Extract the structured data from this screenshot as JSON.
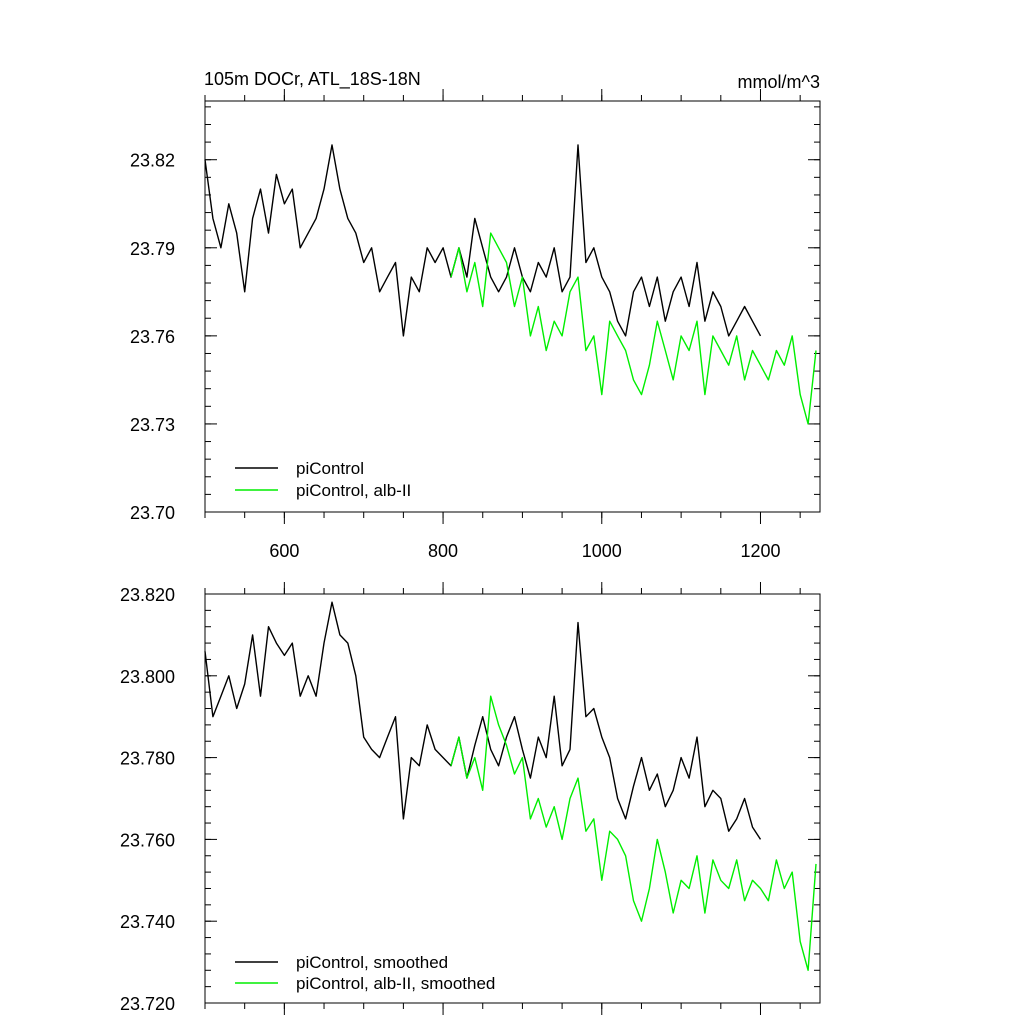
{
  "colors": {
    "control": "#000000",
    "alb": "#00ee00",
    "background": "#ffffff"
  },
  "chart_data": [
    {
      "type": "line",
      "title": "105m DOCr, ATL_18S-18N",
      "units": "mmol/m^3",
      "xlim": [
        500,
        1275
      ],
      "ylim": [
        23.7,
        23.84
      ],
      "xticks": [
        600,
        800,
        1000,
        1200
      ],
      "xtick_labels": [
        "600",
        "800",
        "1000",
        "1200"
      ],
      "yticks": [
        23.7,
        23.73,
        23.76,
        23.79,
        23.82
      ],
      "ytick_labels": [
        "23.70",
        "23.73",
        "23.76",
        "23.79",
        "23.82"
      ],
      "legend": [
        "piControl",
        "piControl, alb-II"
      ],
      "legend_loc": "lower-left",
      "series": [
        {
          "name": "piControl",
          "color": "#000000",
          "x": [
            500,
            510,
            520,
            530,
            540,
            550,
            560,
            570,
            580,
            590,
            600,
            610,
            620,
            630,
            640,
            650,
            660,
            670,
            680,
            690,
            700,
            710,
            720,
            730,
            740,
            750,
            760,
            770,
            780,
            790,
            800,
            810,
            820,
            830,
            840,
            850,
            860,
            870,
            880,
            890,
            900,
            910,
            920,
            930,
            940,
            950,
            960,
            970,
            980,
            990,
            1000,
            1010,
            1020,
            1030,
            1040,
            1050,
            1060,
            1070,
            1080,
            1090,
            1100,
            1110,
            1120,
            1130,
            1140,
            1150,
            1160,
            1170,
            1180,
            1190,
            1200
          ],
          "values": [
            23.82,
            23.8,
            23.79,
            23.805,
            23.795,
            23.775,
            23.8,
            23.81,
            23.795,
            23.815,
            23.805,
            23.81,
            23.79,
            23.795,
            23.8,
            23.81,
            23.825,
            23.81,
            23.8,
            23.795,
            23.785,
            23.79,
            23.775,
            23.78,
            23.785,
            23.76,
            23.78,
            23.775,
            23.79,
            23.785,
            23.79,
            23.78,
            23.79,
            23.78,
            23.8,
            23.79,
            23.78,
            23.775,
            23.78,
            23.79,
            23.78,
            23.775,
            23.785,
            23.78,
            23.79,
            23.775,
            23.78,
            23.825,
            23.785,
            23.79,
            23.78,
            23.775,
            23.765,
            23.76,
            23.775,
            23.78,
            23.77,
            23.78,
            23.765,
            23.775,
            23.78,
            23.77,
            23.785,
            23.765,
            23.775,
            23.77,
            23.76,
            23.765,
            23.77,
            23.765,
            23.76
          ]
        },
        {
          "name": "piControl, alb-II",
          "color": "#00ee00",
          "x": [
            810,
            820,
            830,
            840,
            850,
            860,
            870,
            880,
            890,
            900,
            910,
            920,
            930,
            940,
            950,
            960,
            970,
            980,
            990,
            1000,
            1010,
            1020,
            1030,
            1040,
            1050,
            1060,
            1070,
            1080,
            1090,
            1100,
            1110,
            1120,
            1130,
            1140,
            1150,
            1160,
            1170,
            1180,
            1190,
            1200,
            1210,
            1220,
            1230,
            1240,
            1250,
            1260,
            1270
          ],
          "values": [
            23.78,
            23.79,
            23.775,
            23.785,
            23.77,
            23.795,
            23.79,
            23.785,
            23.77,
            23.78,
            23.76,
            23.77,
            23.755,
            23.765,
            23.76,
            23.775,
            23.78,
            23.755,
            23.76,
            23.74,
            23.765,
            23.76,
            23.755,
            23.745,
            23.74,
            23.75,
            23.765,
            23.755,
            23.745,
            23.76,
            23.755,
            23.765,
            23.74,
            23.76,
            23.755,
            23.75,
            23.76,
            23.745,
            23.755,
            23.75,
            23.745,
            23.755,
            23.75,
            23.76,
            23.74,
            23.73,
            23.755
          ]
        }
      ]
    },
    {
      "type": "line",
      "title": "",
      "xlim": [
        500,
        1275
      ],
      "ylim": [
        23.72,
        23.82
      ],
      "xticks": [
        600,
        800,
        1000,
        1200
      ],
      "yticks": [
        23.72,
        23.74,
        23.76,
        23.78,
        23.8,
        23.82
      ],
      "ytick_labels": [
        "23.720",
        "23.740",
        "23.760",
        "23.780",
        "23.800",
        "23.820"
      ],
      "legend": [
        "piControl, smoothed",
        "piControl, alb-II, smoothed"
      ],
      "legend_loc": "lower-left",
      "series": [
        {
          "name": "piControl, smoothed",
          "color": "#000000",
          "x": [
            500,
            510,
            520,
            530,
            540,
            550,
            560,
            570,
            580,
            590,
            600,
            610,
            620,
            630,
            640,
            650,
            660,
            670,
            680,
            690,
            700,
            710,
            720,
            730,
            740,
            750,
            760,
            770,
            780,
            790,
            800,
            810,
            820,
            830,
            840,
            850,
            860,
            870,
            880,
            890,
            900,
            910,
            920,
            930,
            940,
            950,
            960,
            970,
            980,
            990,
            1000,
            1010,
            1020,
            1030,
            1040,
            1050,
            1060,
            1070,
            1080,
            1090,
            1100,
            1110,
            1120,
            1130,
            1140,
            1150,
            1160,
            1170,
            1180,
            1190,
            1200
          ],
          "values": [
            23.806,
            23.79,
            23.795,
            23.8,
            23.792,
            23.798,
            23.81,
            23.795,
            23.812,
            23.808,
            23.805,
            23.808,
            23.795,
            23.8,
            23.795,
            23.808,
            23.818,
            23.81,
            23.808,
            23.8,
            23.785,
            23.782,
            23.78,
            23.785,
            23.79,
            23.765,
            23.78,
            23.778,
            23.788,
            23.782,
            23.78,
            23.778,
            23.785,
            23.775,
            23.783,
            23.79,
            23.782,
            23.778,
            23.785,
            23.79,
            23.782,
            23.775,
            23.785,
            23.78,
            23.795,
            23.778,
            23.782,
            23.813,
            23.79,
            23.792,
            23.785,
            23.78,
            23.77,
            23.765,
            23.773,
            23.78,
            23.772,
            23.776,
            23.768,
            23.772,
            23.78,
            23.775,
            23.785,
            23.768,
            23.772,
            23.77,
            23.762,
            23.765,
            23.77,
            23.763,
            23.76
          ]
        },
        {
          "name": "piControl, alb-II, smoothed",
          "color": "#00ee00",
          "x": [
            810,
            820,
            830,
            840,
            850,
            860,
            870,
            880,
            890,
            900,
            910,
            920,
            930,
            940,
            950,
            960,
            970,
            980,
            990,
            1000,
            1010,
            1020,
            1030,
            1040,
            1050,
            1060,
            1070,
            1080,
            1090,
            1100,
            1110,
            1120,
            1130,
            1140,
            1150,
            1160,
            1170,
            1180,
            1190,
            1200,
            1210,
            1220,
            1230,
            1240,
            1250,
            1260,
            1270
          ],
          "values": [
            23.778,
            23.785,
            23.775,
            23.78,
            23.772,
            23.795,
            23.788,
            23.783,
            23.776,
            23.78,
            23.765,
            23.77,
            23.763,
            23.768,
            23.76,
            23.77,
            23.775,
            23.762,
            23.765,
            23.75,
            23.762,
            23.76,
            23.756,
            23.745,
            23.74,
            23.748,
            23.76,
            23.752,
            23.742,
            23.75,
            23.748,
            23.756,
            23.742,
            23.755,
            23.75,
            23.748,
            23.755,
            23.745,
            23.75,
            23.748,
            23.745,
            23.755,
            23.748,
            23.752,
            23.735,
            23.728,
            23.754
          ]
        }
      ]
    }
  ]
}
